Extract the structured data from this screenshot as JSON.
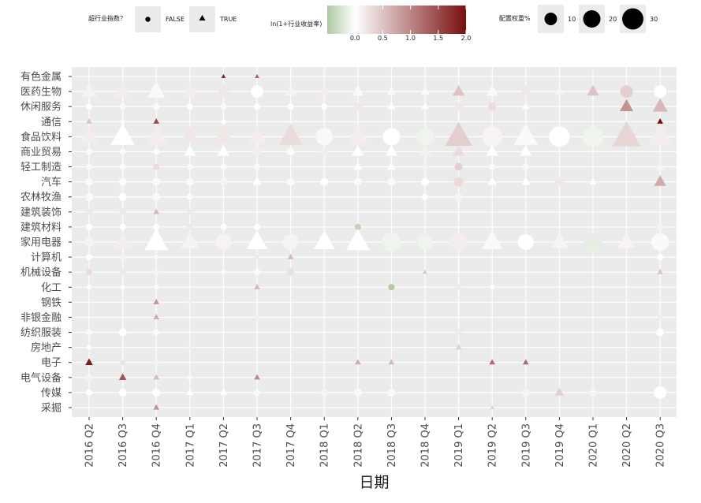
{
  "chart_data": {
    "type": "scatter",
    "xlabel": "日期",
    "ylabel": "",
    "x_categories": [
      "2016 Q2",
      "2016 Q3",
      "2016 Q4",
      "2017 Q1",
      "2017 Q2",
      "2017 Q3",
      "2017 Q4",
      "2018 Q1",
      "2018 Q2",
      "2018 Q3",
      "2018 Q4",
      "2019 Q1",
      "2019 Q2",
      "2019 Q3",
      "2019 Q4",
      "2020 Q1",
      "2020 Q2",
      "2020 Q3"
    ],
    "y_categories": [
      "有色金属",
      "医药生物",
      "休闲服务",
      "通信",
      "食品饮料",
      "商业贸易",
      "轻工制造",
      "汽车",
      "农林牧渔",
      "建筑装饰",
      "建筑材料",
      "家用电器",
      "计算机",
      "机械设备",
      "化工",
      "钢铁",
      "非银金融",
      "纺织服装",
      "房地产",
      "电子",
      "电气设备",
      "传媒",
      "采掘"
    ],
    "legend_shape": {
      "title": "超行业指数？",
      "items": [
        {
          "label": "FALSE",
          "shape": "circle"
        },
        {
          "label": "TRUE",
          "shape": "triangle"
        }
      ]
    },
    "legend_color": {
      "title": "ln(1+行业收益率)",
      "ticks": [
        "0.0",
        "0.5",
        "1.0",
        "1.5",
        "2.0"
      ],
      "range": [
        -0.5,
        2.0
      ],
      "colors": {
        "low": "#aec9a4",
        "mid": "#ffffff",
        "high": "#7a0e0e"
      }
    },
    "legend_size": {
      "title": "配置权重%",
      "items": [
        "10",
        "20",
        "30"
      ]
    },
    "legend_placement": "top",
    "grid": true,
    "points": [
      [
        "有色金属",
        "2017 Q2",
        "T",
        3,
        1.8
      ],
      [
        "有色金属",
        "2017 Q3",
        "T",
        3,
        1.3
      ],
      [
        "医药生物",
        "2016 Q2",
        "T",
        10,
        0.1
      ],
      [
        "医药生物",
        "2016 Q3",
        "T",
        10,
        0.15
      ],
      [
        "医药生物",
        "2016 Q4",
        "T",
        12,
        0.05
      ],
      [
        "医药生物",
        "2017 Q1",
        "T",
        10,
        0.15
      ],
      [
        "医药生物",
        "2017 Q2",
        "T",
        10,
        0.2
      ],
      [
        "医药生物",
        "2017 Q3",
        "C",
        8,
        0.0
      ],
      [
        "医药生物",
        "2017 Q4",
        "T",
        8,
        0.1
      ],
      [
        "医药生物",
        "2018 Q1",
        "T",
        8,
        0.15
      ],
      [
        "医药生物",
        "2018 Q2",
        "T",
        8,
        0.05
      ],
      [
        "医药生物",
        "2018 Q3",
        "T",
        6,
        0.05
      ],
      [
        "医药生物",
        "2018 Q4",
        "T",
        6,
        0.05
      ],
      [
        "医药生物",
        "2019 Q1",
        "T",
        8,
        0.5
      ],
      [
        "医药生物",
        "2019 Q2",
        "T",
        8,
        0.05
      ],
      [
        "医药生物",
        "2019 Q3",
        "T",
        8,
        0.2
      ],
      [
        "医药生物",
        "2019 Q4",
        "T",
        6,
        0.1
      ],
      [
        "医药生物",
        "2020 Q1",
        "T",
        8,
        0.5
      ],
      [
        "医药生物",
        "2020 Q2",
        "C",
        8,
        0.4
      ],
      [
        "医药生物",
        "2020 Q3",
        "C",
        8,
        0.0
      ],
      [
        "休闲服务",
        "2016 Q2",
        "C",
        4,
        0.0
      ],
      [
        "休闲服务",
        "2016 Q3",
        "C",
        4,
        0.05
      ],
      [
        "休闲服务",
        "2016 Q4",
        "C",
        4,
        0.05
      ],
      [
        "休闲服务",
        "2017 Q1",
        "C",
        4,
        0.0
      ],
      [
        "休闲服务",
        "2017 Q2",
        "C",
        4,
        0.05
      ],
      [
        "休闲服务",
        "2017 Q3",
        "C",
        4,
        0.0
      ],
      [
        "休闲服务",
        "2017 Q4",
        "C",
        4,
        0.0
      ],
      [
        "休闲服务",
        "2018 Q1",
        "C",
        4,
        0.0
      ],
      [
        "休闲服务",
        "2018 Q2",
        "C",
        5,
        0.2
      ],
      [
        "休闲服务",
        "2018 Q3",
        "T",
        5,
        0.0
      ],
      [
        "休闲服务",
        "2018 Q4",
        "T",
        5,
        0.0
      ],
      [
        "休闲服务",
        "2019 Q1",
        "C",
        5,
        0.2
      ],
      [
        "休闲服务",
        "2019 Q2",
        "C",
        5,
        0.3
      ],
      [
        "休闲服务",
        "2019 Q3",
        "T",
        5,
        0.0
      ],
      [
        "休闲服务",
        "2020 Q2",
        "T",
        9,
        0.9
      ],
      [
        "休闲服务",
        "2020 Q3",
        "T",
        10,
        0.6
      ],
      [
        "通信",
        "2016 Q2",
        "T",
        4,
        0.5
      ],
      [
        "通信",
        "2016 Q3",
        "C",
        3,
        0.05
      ],
      [
        "通信",
        "2016 Q4",
        "T",
        4,
        1.5
      ],
      [
        "通信",
        "2017 Q2",
        "C",
        3,
        0.0
      ],
      [
        "通信",
        "2020 Q3",
        "T",
        4,
        2.0
      ],
      [
        "食品饮料",
        "2016 Q2",
        "T",
        12,
        0.15
      ],
      [
        "食品饮料",
        "2016 Q3",
        "T",
        16,
        0.0
      ],
      [
        "食品饮料",
        "2016 Q4",
        "T",
        14,
        0.15
      ],
      [
        "食品饮料",
        "2017 Q1",
        "T",
        12,
        0.2
      ],
      [
        "食品饮料",
        "2017 Q2",
        "T",
        14,
        0.2
      ],
      [
        "食品饮料",
        "2017 Q3",
        "T",
        12,
        0.15
      ],
      [
        "食品饮料",
        "2017 Q4",
        "T",
        16,
        0.3
      ],
      [
        "食品饮料",
        "2018 Q1",
        "C",
        11,
        -0.05
      ],
      [
        "食品饮料",
        "2018 Q2",
        "T",
        14,
        0.15
      ],
      [
        "食品饮料",
        "2018 Q3",
        "C",
        11,
        0.0
      ],
      [
        "食品饮料",
        "2018 Q4",
        "C",
        11,
        -0.1
      ],
      [
        "食品饮料",
        "2019 Q1",
        "T",
        18,
        0.4
      ],
      [
        "食品饮料",
        "2019 Q2",
        "C",
        13,
        0.1
      ],
      [
        "食品饮料",
        "2019 Q3",
        "T",
        16,
        0.05
      ],
      [
        "食品饮料",
        "2019 Q4",
        "C",
        13,
        0.0
      ],
      [
        "食品饮料",
        "2020 Q1",
        "C",
        13,
        -0.1
      ],
      [
        "食品饮料",
        "2020 Q2",
        "T",
        19,
        0.35
      ],
      [
        "食品饮料",
        "2020 Q3",
        "T",
        16,
        0.15
      ],
      [
        "商业贸易",
        "2016 Q2",
        "C",
        4,
        0.05
      ],
      [
        "商业贸易",
        "2016 Q3",
        "C",
        4,
        0.05
      ],
      [
        "商业贸易",
        "2016 Q4",
        "C",
        4,
        0.05
      ],
      [
        "商业贸易",
        "2017 Q1",
        "T",
        8,
        0.0
      ],
      [
        "商业贸易",
        "2017 Q2",
        "T",
        8,
        0.0
      ],
      [
        "商业贸易",
        "2017 Q3",
        "C",
        5,
        0.15
      ],
      [
        "商业贸易",
        "2017 Q4",
        "C",
        5,
        0.05
      ],
      [
        "商业贸易",
        "2018 Q1",
        "C",
        5,
        0.15
      ],
      [
        "商业贸易",
        "2018 Q2",
        "T",
        8,
        0.0
      ],
      [
        "商业贸易",
        "2018 Q3",
        "T",
        8,
        0.0
      ],
      [
        "商业贸易",
        "2018 Q4",
        "T",
        8,
        -0.1
      ],
      [
        "商业贸易",
        "2019 Q1",
        "T",
        8,
        0.3
      ],
      [
        "商业贸易",
        "2019 Q2",
        "T",
        8,
        0.0
      ],
      [
        "商业贸易",
        "2019 Q3",
        "T",
        8,
        0.0
      ],
      [
        "轻工制造",
        "2016 Q2",
        "C",
        4,
        0.05
      ],
      [
        "轻工制造",
        "2016 Q3",
        "C",
        4,
        0.05
      ],
      [
        "轻工制造",
        "2016 Q4",
        "C",
        4,
        0.3
      ],
      [
        "轻工制造",
        "2017 Q1",
        "C",
        4,
        0.05
      ],
      [
        "轻工制造",
        "2017 Q2",
        "C",
        4,
        0.05
      ],
      [
        "轻工制造",
        "2017 Q3",
        "C",
        4,
        0.05
      ],
      [
        "轻工制造",
        "2018 Q2",
        "T",
        6,
        0.0
      ],
      [
        "轻工制造",
        "2018 Q3",
        "T",
        6,
        0.0
      ],
      [
        "轻工制造",
        "2018 Q4",
        "C",
        4,
        -0.1
      ],
      [
        "轻工制造",
        "2019 Q1",
        "C",
        5,
        0.4
      ],
      [
        "轻工制造",
        "2019 Q2",
        "C",
        4,
        0.05
      ],
      [
        "轻工制造",
        "2019 Q3",
        "C",
        4,
        0.05
      ],
      [
        "轻工制造",
        "2020 Q3",
        "T",
        6,
        0.1
      ],
      [
        "汽车",
        "2016 Q2",
        "C",
        5,
        0.05
      ],
      [
        "汽车",
        "2016 Q3",
        "C",
        5,
        0.05
      ],
      [
        "汽车",
        "2016 Q4",
        "C",
        5,
        0.05
      ],
      [
        "汽车",
        "2017 Q1",
        "C",
        5,
        0.05
      ],
      [
        "汽车",
        "2017 Q2",
        "C",
        5,
        0.1
      ],
      [
        "汽车",
        "2017 Q3",
        "T",
        6,
        0.0
      ],
      [
        "汽车",
        "2017 Q4",
        "C",
        5,
        0.05
      ],
      [
        "汽车",
        "2018 Q1",
        "C",
        5,
        0.0
      ],
      [
        "汽车",
        "2018 Q2",
        "C",
        5,
        0.05
      ],
      [
        "汽车",
        "2018 Q3",
        "C",
        5,
        0.05
      ],
      [
        "汽车",
        "2018 Q4",
        "C",
        5,
        0.0
      ],
      [
        "汽车",
        "2019 Q1",
        "C",
        6,
        0.3
      ],
      [
        "汽车",
        "2019 Q2",
        "T",
        6,
        0.0
      ],
      [
        "汽车",
        "2019 Q3",
        "T",
        6,
        0.0
      ],
      [
        "汽车",
        "2019 Q4",
        "C",
        5,
        0.2
      ],
      [
        "汽车",
        "2020 Q1",
        "T",
        5,
        0.0
      ],
      [
        "汽车",
        "2020 Q3",
        "T",
        8,
        0.7
      ],
      [
        "农林牧渔",
        "2016 Q2",
        "C",
        5,
        0.05
      ],
      [
        "农林牧渔",
        "2016 Q3",
        "C",
        5,
        0.0
      ],
      [
        "农林牧渔",
        "2016 Q4",
        "C",
        5,
        0.05
      ],
      [
        "农林牧渔",
        "2017 Q1",
        "C",
        4,
        0.05
      ],
      [
        "农林牧渔",
        "2018 Q4",
        "C",
        4,
        0.0
      ],
      [
        "农林牧渔",
        "2019 Q1",
        "C",
        5,
        0.1
      ],
      [
        "建筑装饰",
        "2016 Q2",
        "C",
        4,
        0.2
      ],
      [
        "建筑装饰",
        "2016 Q3",
        "C",
        4,
        0.2
      ],
      [
        "建筑装饰",
        "2016 Q4",
        "T",
        4,
        0.6
      ],
      [
        "建筑装饰",
        "2017 Q1",
        "C",
        3,
        0.2
      ],
      [
        "建筑材料",
        "2016 Q2",
        "C",
        4,
        0.0
      ],
      [
        "建筑材料",
        "2016 Q3",
        "C",
        4,
        0.0
      ],
      [
        "建筑材料",
        "2016 Q4",
        "C",
        4,
        0.0
      ],
      [
        "建筑材料",
        "2017 Q1",
        "C",
        4,
        0.2
      ],
      [
        "建筑材料",
        "2017 Q2",
        "C",
        4,
        0.0
      ],
      [
        "建筑材料",
        "2017 Q3",
        "C",
        4,
        0.0
      ],
      [
        "建筑材料",
        "2018 Q2",
        "C",
        4,
        -0.4
      ],
      [
        "建筑材料",
        "2020 Q3",
        "C",
        5,
        -0.1
      ],
      [
        "家用电器",
        "2016 Q2",
        "C",
        6,
        0.1
      ],
      [
        "家用电器",
        "2016 Q3",
        "T",
        12,
        0.15
      ],
      [
        "家用电器",
        "2016 Q4",
        "T",
        16,
        0.0
      ],
      [
        "家用电器",
        "2017 Q1",
        "T",
        12,
        0.1
      ],
      [
        "家用电器",
        "2017 Q2",
        "C",
        10,
        0.1
      ],
      [
        "家用电器",
        "2017 Q3",
        "T",
        14,
        0.0
      ],
      [
        "家用电器",
        "2017 Q4",
        "C",
        10,
        0.1
      ],
      [
        "家用电器",
        "2018 Q1",
        "T",
        14,
        0.0
      ],
      [
        "家用电器",
        "2018 Q2",
        "T",
        16,
        0.0
      ],
      [
        "家用电器",
        "2018 Q3",
        "C",
        12,
        -0.1
      ],
      [
        "家用电器",
        "2018 Q4",
        "C",
        10,
        -0.1
      ],
      [
        "家用电器",
        "2019 Q1",
        "C",
        11,
        0.15
      ],
      [
        "家用电器",
        "2019 Q2",
        "T",
        14,
        0.05
      ],
      [
        "家用电器",
        "2019 Q3",
        "C",
        10,
        0.0
      ],
      [
        "家用电器",
        "2019 Q4",
        "T",
        12,
        0.1
      ],
      [
        "家用电器",
        "2020 Q1",
        "C",
        11,
        -0.15
      ],
      [
        "家用电器",
        "2020 Q2",
        "T",
        12,
        0.1
      ],
      [
        "家用电器",
        "2020 Q3",
        "C",
        11,
        0.05
      ],
      [
        "计算机",
        "2016 Q2",
        "C",
        4,
        0.0
      ],
      [
        "计算机",
        "2016 Q3",
        "C",
        4,
        0.1
      ],
      [
        "计算机",
        "2016 Q4",
        "C",
        3,
        0.05
      ],
      [
        "计算机",
        "2017 Q3",
        "C",
        3,
        0.2
      ],
      [
        "计算机",
        "2017 Q4",
        "T",
        4,
        0.6
      ],
      [
        "计算机",
        "2020 Q3",
        "C",
        4,
        0.0
      ],
      [
        "机械设备",
        "2016 Q2",
        "C",
        4,
        0.3
      ],
      [
        "机械设备",
        "2016 Q3",
        "C",
        4,
        0.2
      ],
      [
        "机械设备",
        "2016 Q4",
        "C",
        4,
        0.1
      ],
      [
        "机械设备",
        "2017 Q2",
        "C",
        3,
        0.05
      ],
      [
        "机械设备",
        "2017 Q3",
        "C",
        4,
        0.05
      ],
      [
        "机械设备",
        "2017 Q4",
        "C",
        5,
        -0.2
      ],
      [
        "机械设备",
        "2018 Q4",
        "T",
        3,
        0.5
      ],
      [
        "机械设备",
        "2020 Q3",
        "T",
        4,
        0.5
      ],
      [
        "化工",
        "2016 Q2",
        "C",
        3,
        0.0
      ],
      [
        "化工",
        "2016 Q3",
        "C",
        3,
        0.0
      ],
      [
        "化工",
        "2016 Q4",
        "C",
        3,
        0.05
      ],
      [
        "化工",
        "2017 Q3",
        "T",
        4,
        0.6
      ],
      [
        "化工",
        "2018 Q3",
        "C",
        4,
        -0.5
      ],
      [
        "化工",
        "2019 Q1",
        "C",
        3,
        0.2
      ],
      [
        "化工",
        "2019 Q2",
        "C",
        3,
        0.0
      ],
      [
        "钢铁",
        "2016 Q4",
        "T",
        4,
        0.9
      ],
      [
        "钢铁",
        "2017 Q1",
        "C",
        3,
        -0.1
      ],
      [
        "非银金融",
        "2016 Q4",
        "T",
        4,
        0.7
      ],
      [
        "非银金融",
        "2017 Q3",
        "C",
        3,
        0.15
      ],
      [
        "非银金融",
        "2020 Q3",
        "C",
        3,
        0.15
      ],
      [
        "纺织服装",
        "2016 Q2",
        "C",
        4,
        0.05
      ],
      [
        "纺织服装",
        "2016 Q3",
        "C",
        5,
        0.0
      ],
      [
        "纺织服装",
        "2016 Q4",
        "C",
        4,
        0.05
      ],
      [
        "纺织服装",
        "2019 Q1",
        "C",
        4,
        0.2
      ],
      [
        "纺织服装",
        "2020 Q3",
        "C",
        5,
        0.0
      ],
      [
        "房地产",
        "2016 Q2",
        "C",
        3,
        0.0
      ],
      [
        "房地产",
        "2017 Q1",
        "C",
        3,
        0.1
      ],
      [
        "房地产",
        "2018 Q2",
        "C",
        3,
        -0.1
      ],
      [
        "房地产",
        "2019 Q1",
        "T",
        4,
        0.4
      ],
      [
        "电子",
        "2016 Q2",
        "T",
        5,
        1.9
      ],
      [
        "电子",
        "2016 Q3",
        "C",
        3,
        -0.2
      ],
      [
        "电子",
        "2016 Q4",
        "C",
        3,
        0.1
      ],
      [
        "电子",
        "2018 Q2",
        "T",
        4,
        0.7
      ],
      [
        "电子",
        "2018 Q3",
        "T",
        4,
        0.6
      ],
      [
        "电子",
        "2019 Q2",
        "T",
        4,
        1.2
      ],
      [
        "电子",
        "2019 Q3",
        "T",
        4,
        1.2
      ],
      [
        "电气设备",
        "2016 Q2",
        "C",
        4,
        0.1
      ],
      [
        "电气设备",
        "2016 Q3",
        "T",
        5,
        1.4
      ],
      [
        "电气设备",
        "2016 Q4",
        "T",
        4,
        0.6
      ],
      [
        "电气设备",
        "2017 Q1",
        "C",
        3,
        0.05
      ],
      [
        "电气设备",
        "2017 Q3",
        "T",
        4,
        1.0
      ],
      [
        "传媒",
        "2016 Q2",
        "C",
        4,
        0.0
      ],
      [
        "传媒",
        "2016 Q3",
        "C",
        5,
        0.0
      ],
      [
        "传媒",
        "2016 Q4",
        "C",
        5,
        0.0
      ],
      [
        "传媒",
        "2017 Q1",
        "T",
        5,
        0.0
      ],
      [
        "传媒",
        "2017 Q2",
        "T",
        5,
        0.0
      ],
      [
        "传媒",
        "2017 Q3",
        "C",
        4,
        0.05
      ],
      [
        "传媒",
        "2018 Q1",
        "C",
        5,
        0.1
      ],
      [
        "传媒",
        "2018 Q2",
        "C",
        5,
        0.05
      ],
      [
        "传媒",
        "2018 Q3",
        "C",
        5,
        -0.05
      ],
      [
        "传媒",
        "2019 Q3",
        "C",
        5,
        0.1
      ],
      [
        "传媒",
        "2019 Q4",
        "T",
        6,
        0.4
      ],
      [
        "传媒",
        "2020 Q1",
        "C",
        5,
        0.1
      ],
      [
        "传媒",
        "2020 Q3",
        "C",
        8,
        0.0
      ],
      [
        "采掘",
        "2016 Q4",
        "T",
        4,
        0.9
      ],
      [
        "采掘",
        "2019 Q2",
        "T",
        3,
        0.4
      ]
    ]
  }
}
